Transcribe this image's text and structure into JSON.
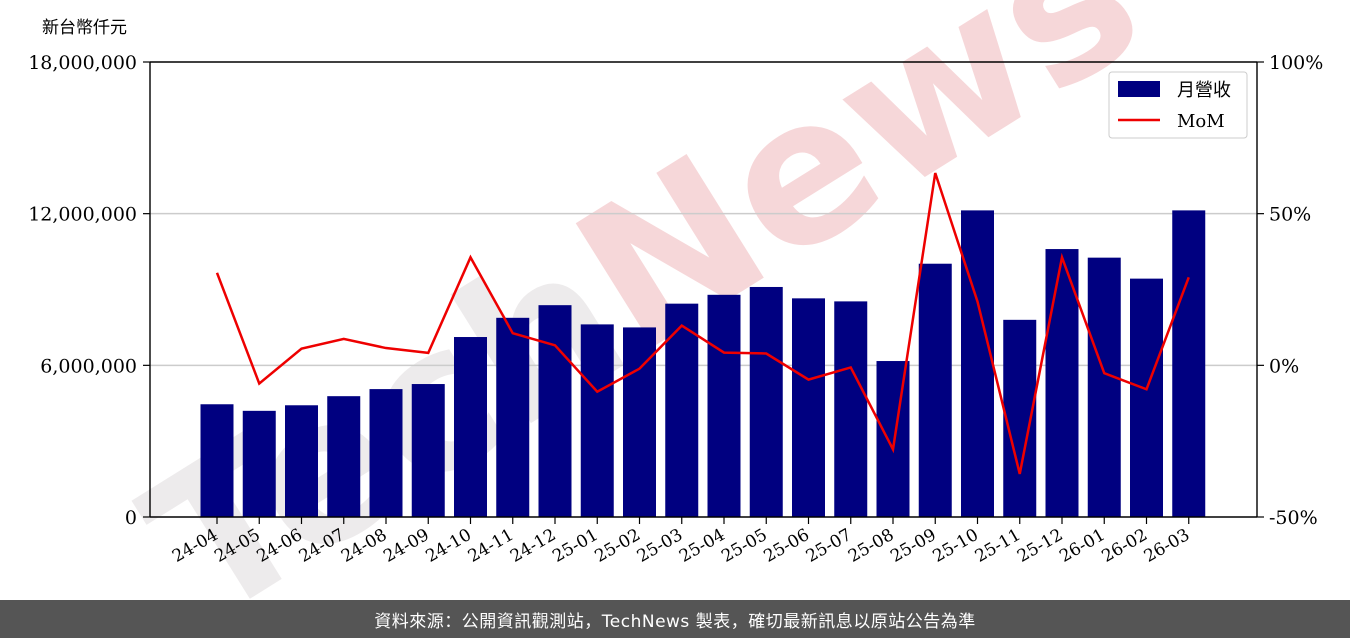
{
  "chart_data": {
    "type": "bar",
    "unit_label": "新台幣仟元",
    "categories": [
      "24-04",
      "24-05",
      "24-06",
      "24-07",
      "24-08",
      "24-09",
      "24-10",
      "24-11",
      "24-12",
      "25-01",
      "25-02",
      "25-03",
      "25-04",
      "25-05",
      "25-06",
      "25-07",
      "25-08",
      "25-09",
      "25-10",
      "25-11",
      "25-12",
      "26-01",
      "26-02",
      "26-03"
    ],
    "series": [
      {
        "name": "月營收",
        "type": "bar",
        "axis": "left",
        "color": "#000080",
        "values": [
          4460000,
          4200000,
          4420000,
          4780000,
          5060000,
          5260000,
          7120000,
          7880000,
          8380000,
          7620000,
          7500000,
          8440000,
          8790000,
          9100000,
          8650000,
          8530000,
          6170000,
          10020000,
          12130000,
          7800000,
          10600000,
          10260000,
          9430000,
          12130000
        ]
      },
      {
        "name": "MoM",
        "type": "line",
        "axis": "right",
        "color": "#ee0000",
        "values": [
          30.5,
          -6.0,
          5.5,
          8.7,
          5.7,
          4.1,
          35.6,
          10.6,
          6.6,
          -8.7,
          -1.1,
          13.1,
          4.2,
          3.9,
          -4.7,
          -0.7,
          -27.7,
          63.4,
          21.0,
          -35.8,
          35.6,
          -2.6,
          -7.9,
          29.0
        ]
      }
    ],
    "yticks": [
      "0",
      "6,000,000",
      "12,000,000",
      "18,000,000"
    ],
    "ylim": [
      0,
      18000000
    ],
    "y2ticks": [
      "-50%",
      "0%",
      "50%",
      "100%"
    ],
    "y2lim": [
      -50,
      100
    ],
    "grid": "horizontal",
    "legend_position": "top-right"
  },
  "watermark": {
    "text": "TechNews",
    "color_dark": "#ece9ea",
    "color_accent": "#f6d3d5"
  },
  "footer": {
    "text": "資料來源：公開資訊觀測站，TechNews 製表，確切最新訊息以原站公告為準"
  }
}
